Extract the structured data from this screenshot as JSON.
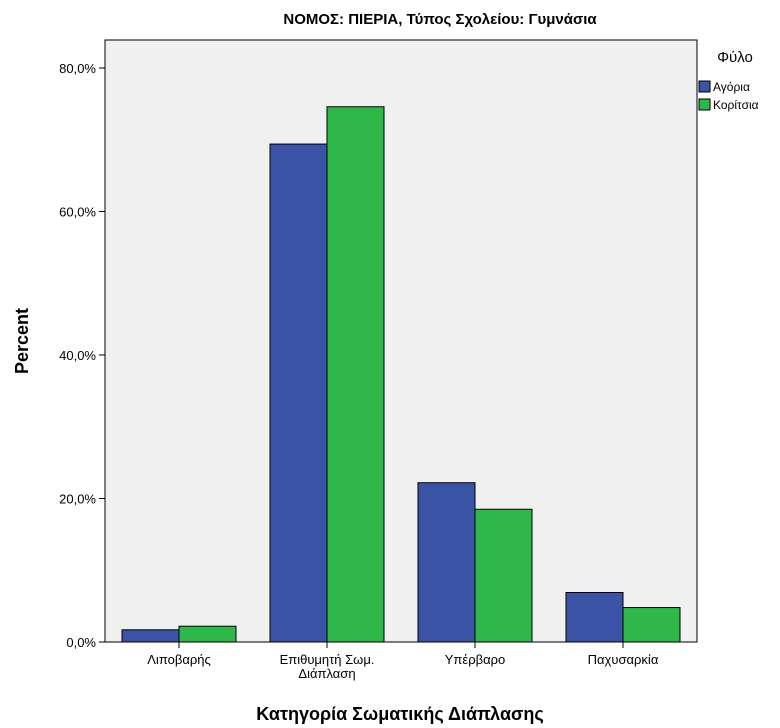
{
  "chart_data": {
    "type": "bar",
    "title": "ΝΟΜΟΣ: ΠΙΕΡΙΑ, Τύπος Σχολείου: Γυμνάσια",
    "xlabel": "Κατηγορία Σωματικής Διάπλασης",
    "ylabel": "Percent",
    "categories": [
      [
        "Λιποβαρής"
      ],
      [
        "Επιθυμητή Σωμ.",
        "Διάπλαση"
      ],
      [
        "Υπέρβαρο"
      ],
      [
        "Παχυσαρκία"
      ]
    ],
    "series": [
      {
        "name": "Αγόρια",
        "color": "#3a53a4",
        "values": [
          1.7,
          69.4,
          22.2,
          6.9
        ]
      },
      {
        "name": "Κορίτσια",
        "color": "#2fb84a",
        "values": [
          2.2,
          74.6,
          18.5,
          4.8
        ]
      }
    ],
    "ylim": [
      0,
      80
    ],
    "yticks": [
      "0,0%",
      "20,0%",
      "40,0%",
      "60,0%",
      "80,0%"
    ],
    "ytick_values": [
      0,
      20,
      40,
      60,
      80
    ],
    "legend": {
      "title": "Φύλο",
      "position": "right"
    },
    "plot_background": "#f0f0f0",
    "grid": false
  }
}
